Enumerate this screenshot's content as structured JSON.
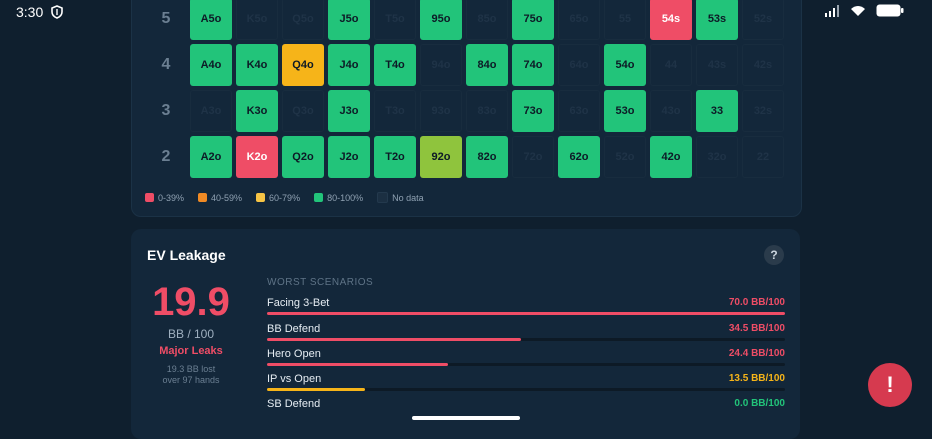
{
  "status_bar": {
    "time": "3:30"
  },
  "grid": {
    "rows": [
      {
        "label": "5",
        "cells": [
          {
            "t": "A5o",
            "c": "green"
          },
          {
            "t": "K5o",
            "c": "empty"
          },
          {
            "t": "Q5o",
            "c": "empty"
          },
          {
            "t": "J5o",
            "c": "green"
          },
          {
            "t": "T5o",
            "c": "empty"
          },
          {
            "t": "95o",
            "c": "green"
          },
          {
            "t": "85o",
            "c": "empty"
          },
          {
            "t": "75o",
            "c": "green"
          },
          {
            "t": "65o",
            "c": "empty"
          },
          {
            "t": "55",
            "c": "empty"
          },
          {
            "t": "54s",
            "c": "red"
          },
          {
            "t": "53s",
            "c": "green"
          },
          {
            "t": "52s",
            "c": "empty"
          }
        ]
      },
      {
        "label": "4",
        "cells": [
          {
            "t": "A4o",
            "c": "green"
          },
          {
            "t": "K4o",
            "c": "green"
          },
          {
            "t": "Q4o",
            "c": "yellow"
          },
          {
            "t": "J4o",
            "c": "green"
          },
          {
            "t": "T4o",
            "c": "green"
          },
          {
            "t": "94o",
            "c": "empty"
          },
          {
            "t": "84o",
            "c": "green"
          },
          {
            "t": "74o",
            "c": "green"
          },
          {
            "t": "64o",
            "c": "empty"
          },
          {
            "t": "54o",
            "c": "green"
          },
          {
            "t": "44",
            "c": "empty"
          },
          {
            "t": "43s",
            "c": "empty"
          },
          {
            "t": "42s",
            "c": "empty"
          }
        ]
      },
      {
        "label": "3",
        "cells": [
          {
            "t": "A3o",
            "c": "empty"
          },
          {
            "t": "K3o",
            "c": "green"
          },
          {
            "t": "Q3o",
            "c": "empty"
          },
          {
            "t": "J3o",
            "c": "green"
          },
          {
            "t": "T3o",
            "c": "empty"
          },
          {
            "t": "93o",
            "c": "empty"
          },
          {
            "t": "83o",
            "c": "empty"
          },
          {
            "t": "73o",
            "c": "green"
          },
          {
            "t": "63o",
            "c": "empty"
          },
          {
            "t": "53o",
            "c": "green"
          },
          {
            "t": "43o",
            "c": "empty"
          },
          {
            "t": "33",
            "c": "green"
          },
          {
            "t": "32s",
            "c": "empty"
          }
        ]
      },
      {
        "label": "2",
        "cells": [
          {
            "t": "A2o",
            "c": "green"
          },
          {
            "t": "K2o",
            "c": "red"
          },
          {
            "t": "Q2o",
            "c": "green"
          },
          {
            "t": "J2o",
            "c": "green"
          },
          {
            "t": "T2o",
            "c": "green"
          },
          {
            "t": "92o",
            "c": "lime"
          },
          {
            "t": "82o",
            "c": "green"
          },
          {
            "t": "72o",
            "c": "empty"
          },
          {
            "t": "62o",
            "c": "green"
          },
          {
            "t": "52o",
            "c": "empty"
          },
          {
            "t": "42o",
            "c": "green"
          },
          {
            "t": "32o",
            "c": "empty"
          },
          {
            "t": "22",
            "c": "empty"
          }
        ]
      }
    ]
  },
  "legend": [
    {
      "label": "0-39%",
      "color": "#ef4d66"
    },
    {
      "label": "40-59%",
      "color": "#f08a24"
    },
    {
      "label": "60-79%",
      "color": "#f6c445"
    },
    {
      "label": "80-100%",
      "color": "#22c47a"
    },
    {
      "label": "No data",
      "color": "#1b2f42"
    }
  ],
  "ev": {
    "title": "EV Leakage",
    "help": "?",
    "value": "19.9",
    "unit": "BB / 100",
    "status": "Major Leaks",
    "lost": "19.3 BB lost",
    "hands": "over 97 hands",
    "worst_title": "WORST SCENARIOS",
    "scenarios": [
      {
        "name": "Facing 3-Bet",
        "value": "70.0 BB/100",
        "fill": 1.0,
        "color": "#ef4d66"
      },
      {
        "name": "BB Defend",
        "value": "34.5 BB/100",
        "fill": 0.49,
        "color": "#ef4d66"
      },
      {
        "name": "Hero Open",
        "value": "24.4 BB/100",
        "fill": 0.35,
        "color": "#ef4d66"
      },
      {
        "name": "IP vs Open",
        "value": "13.5 BB/100",
        "fill": 0.19,
        "color": "#f6b419"
      },
      {
        "name": "SB Defend",
        "value": "0.0 BB/100",
        "fill": 0.0,
        "color": "#22c47a"
      }
    ]
  },
  "fab": {
    "label": "!"
  }
}
